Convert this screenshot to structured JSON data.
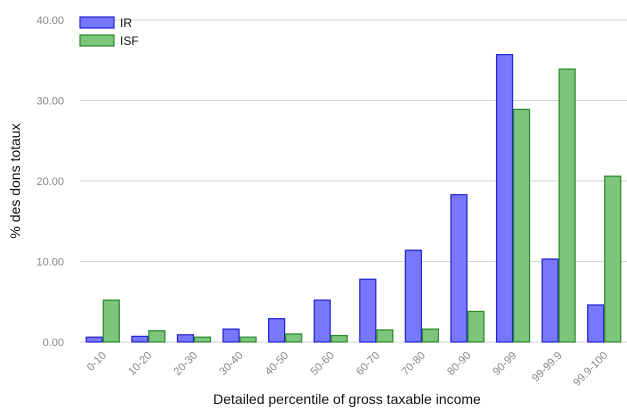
{
  "chart_data": {
    "type": "bar",
    "categories": [
      "0-10",
      "10-20",
      "20-30",
      "30-40",
      "40-50",
      "50-60",
      "60-70",
      "70-80",
      "80-90",
      "90-99",
      "99-99.9",
      "99.9-100"
    ],
    "series": [
      {
        "name": "IR",
        "color": "#7878ff",
        "stroke": "#2222cc",
        "values": [
          0.6,
          0.7,
          0.9,
          1.6,
          2.9,
          5.2,
          7.8,
          11.4,
          18.3,
          35.7,
          10.3,
          4.6
        ]
      },
      {
        "name": "ISF",
        "color": "#7dc47d",
        "stroke": "#2a8a2a",
        "values": [
          5.2,
          1.4,
          0.6,
          0.6,
          1.0,
          0.8,
          1.5,
          1.6,
          3.8,
          28.9,
          33.9,
          20.6
        ]
      }
    ],
    "title": "",
    "xlabel": "Detailed percentile of gross taxable income",
    "ylabel": "% des dons totaux",
    "ylim": [
      0,
      40
    ],
    "yticks": [
      "0.00",
      "10.00",
      "20.00",
      "30.00",
      "40.00"
    ],
    "ytick_values": [
      0,
      10,
      20,
      30,
      40
    ],
    "grid": true,
    "legend": "top-left"
  }
}
